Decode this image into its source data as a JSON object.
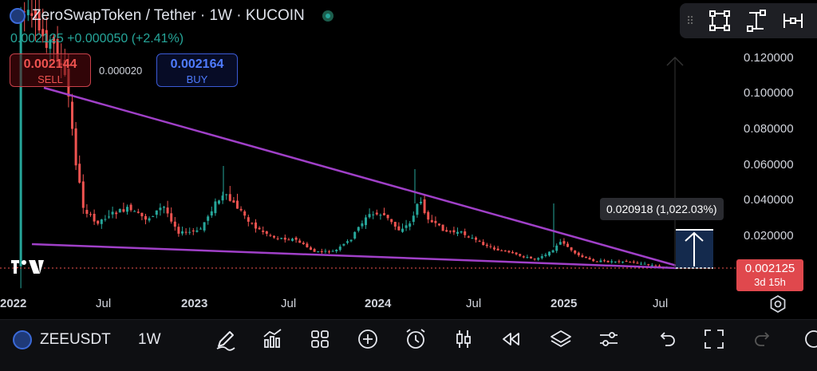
{
  "header": {
    "title": "ZeroSwapToken / Tether · 1W · KUCOIN",
    "quote": "0.002125 +0.000050 (+2.41%)"
  },
  "trade": {
    "sell_price": "0.002144",
    "sell_label": "SELL",
    "spread": "0.000020",
    "buy_price": "0.002164",
    "buy_label": "BUY"
  },
  "toolbox": {
    "icons": [
      "drag-handle-icon",
      "rectangle-select-icon",
      "vertical-measure-icon",
      "horizontal-measure-icon"
    ]
  },
  "price_axis": {
    "ticks": [
      "0.120000",
      "0.100000",
      "0.080000",
      "0.060000",
      "0.040000",
      "0.020000"
    ],
    "current_price": "0.002125",
    "countdown": "3d 15h"
  },
  "time_axis": {
    "labels": [
      {
        "text": "2022",
        "year": true
      },
      {
        "text": "Jul",
        "year": false
      },
      {
        "text": "2023",
        "year": true
      },
      {
        "text": "Jul",
        "year": false
      },
      {
        "text": "2024",
        "year": true
      },
      {
        "text": "Jul",
        "year": false
      },
      {
        "text": "2025",
        "year": true
      },
      {
        "text": "Jul",
        "year": false
      }
    ]
  },
  "measure": {
    "label": "0.020918 (1,022.03%)"
  },
  "bottom_bar": {
    "symbol": "ZEEUSDT",
    "timeframe": "1W",
    "tools": [
      "pencil-icon",
      "indicators-icon",
      "grid-icon",
      "add-icon",
      "alarm-icon",
      "candles-icon",
      "replay-icon",
      "layers-icon",
      "settings-sliders-icon",
      "undo-icon",
      "fullscreen-icon",
      "redo-icon"
    ]
  },
  "colors": {
    "up": "#26a69a",
    "down": "#ef5350",
    "trendline": "#a040c8",
    "background": "#000000"
  }
}
